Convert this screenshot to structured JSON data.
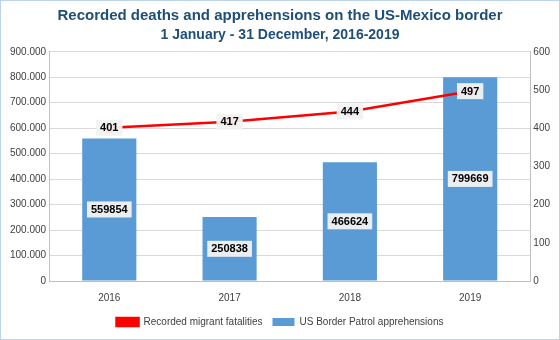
{
  "chart_data": {
    "type": "bar",
    "title": "Recorded deaths and apprehensions on the US-Mexico border",
    "subtitle": "1 January - 31 December, 2016-2019",
    "categories": [
      "2016",
      "2017",
      "2018",
      "2019"
    ],
    "series": [
      {
        "name": "US Border Patrol apprehensions",
        "type": "bar",
        "color": "#5b9bd5",
        "values": [
          559854,
          250838,
          466624,
          799669
        ]
      },
      {
        "name": "Recorded migrant fatalities",
        "type": "line",
        "color": "#ff0000",
        "marker": "circle",
        "axis": "y2",
        "values": [
          401,
          417,
          444,
          497
        ]
      }
    ],
    "ylim": [
      0,
      900000
    ],
    "yticks": [
      0,
      {
        "value": 100000,
        "label": "100.000"
      },
      {
        "value": 200000,
        "label": "200.000"
      },
      {
        "value": 300000,
        "label": "300.000"
      },
      {
        "value": 400000,
        "label": "400.000"
      },
      {
        "value": 500000,
        "label": "500.000"
      },
      {
        "value": 600000,
        "label": "600.000"
      },
      {
        "value": 700000,
        "label": "700.000"
      },
      {
        "value": 800000,
        "label": "800.000"
      },
      {
        "value": 900000,
        "label": "900.000"
      }
    ],
    "y2lim": [
      0,
      600
    ],
    "y2ticks": [
      0,
      100,
      200,
      300,
      400,
      500,
      600
    ],
    "grid": true,
    "legend": "bottom",
    "data_labels": true
  }
}
